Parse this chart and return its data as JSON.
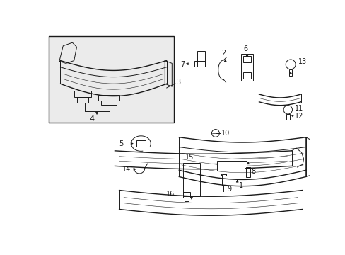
{
  "bg_color": "#ffffff",
  "line_color": "#1a1a1a",
  "box_bg": "#ebebeb",
  "figsize": [
    4.89,
    3.6
  ],
  "dpi": 100
}
